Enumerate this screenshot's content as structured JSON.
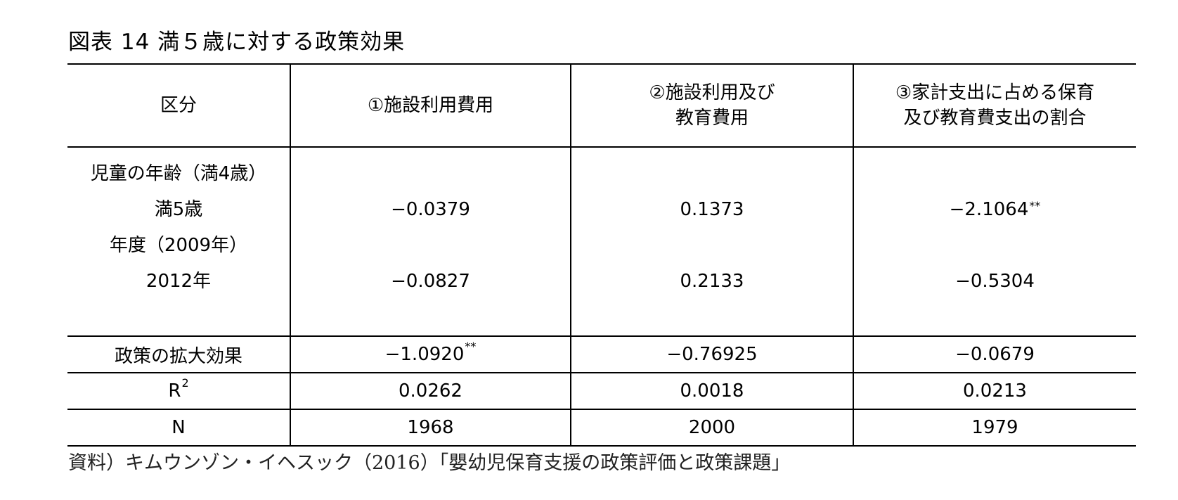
{
  "title": "図表 14  満５歳に対する政策効果",
  "header": {
    "col0": "区分",
    "col1": "①施設利用費用",
    "col2_line1": "②施設利用及び",
    "col2_line2": "教育費用",
    "col3_line1": "③家計支出に占める保育",
    "col3_line2": "及び教育費支出の割合"
  },
  "body": {
    "labels": [
      "児童の年齢（満4歳）",
      "満5歳",
      "年度（2009年）",
      "2012年"
    ],
    "col1": {
      "age5": "−0.0379",
      "y2012": "−0.0827"
    },
    "col2": {
      "age5": "0.1373",
      "y2012": "0.2133"
    },
    "col3": {
      "age5": "−2.1064",
      "age5_sig": "**",
      "y2012": "−0.5304"
    }
  },
  "policy": {
    "label": "政策の拡大効果",
    "col1": "−1.0920",
    "col1_sig": "**",
    "col2": "−0.76925",
    "col3": "−0.0679"
  },
  "r2": {
    "label": "R",
    "label_sup": "2",
    "col1": "0.0262",
    "col2": "0.0018",
    "col3": "0.0213"
  },
  "n": {
    "label": "N",
    "col1": "1968",
    "col2": "2000",
    "col3": "1979"
  },
  "source": "資料）キムウンゾン・イヘスック（2016）「嬰幼児保育支援の政策評価と政策課題」"
}
